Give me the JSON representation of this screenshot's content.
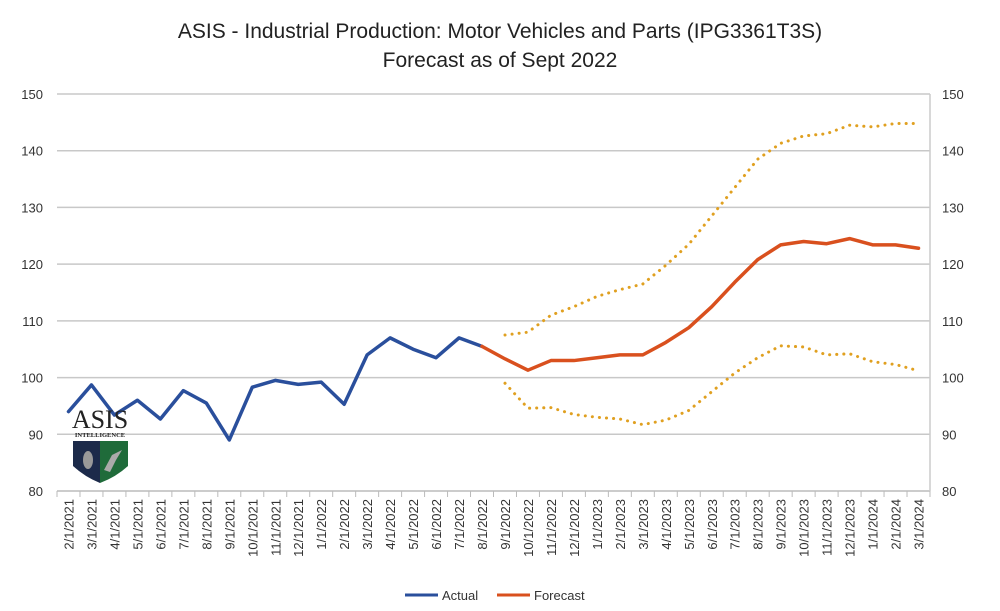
{
  "chart_data": {
    "type": "line",
    "title": "ASIS - Industrial Production: Motor Vehicles and Parts (IPG3361T3S)",
    "subtitle": "Forecast as of Sept 2022",
    "categories": [
      "2/1/2021",
      "3/1/2021",
      "4/1/2021",
      "5/1/2021",
      "6/1/2021",
      "7/1/2021",
      "8/1/2021",
      "9/1/2021",
      "10/1/2021",
      "11/1/2021",
      "12/1/2021",
      "1/1/2022",
      "2/1/2022",
      "3/1/2022",
      "4/1/2022",
      "5/1/2022",
      "6/1/2022",
      "7/1/2022",
      "8/1/2022",
      "9/1/2022",
      "10/1/2022",
      "11/1/2022",
      "12/1/2022",
      "1/1/2023",
      "2/1/2023",
      "3/1/2023",
      "4/1/2023",
      "5/1/2023",
      "6/1/2023",
      "7/1/2023",
      "8/1/2023",
      "9/1/2023",
      "10/1/2023",
      "11/1/2023",
      "12/1/2023",
      "1/1/2024",
      "2/1/2024",
      "3/1/2024"
    ],
    "ylim": [
      80,
      150
    ],
    "yticks": [
      80,
      90,
      100,
      110,
      120,
      130,
      140,
      150
    ],
    "grid": true,
    "legend": "bottom",
    "series": [
      {
        "name": "Actual",
        "color": "#2a4f9c",
        "style": "solid",
        "values": [
          94,
          98.7,
          93.4,
          96,
          92.7,
          97.7,
          95.5,
          89,
          98.3,
          99.5,
          98.8,
          99.2,
          95.3,
          104,
          107,
          105,
          103.5,
          107,
          105.5,
          null,
          null,
          null,
          null,
          null,
          null,
          null,
          null,
          null,
          null,
          null,
          null,
          null,
          null,
          null,
          null,
          null,
          null,
          null
        ]
      },
      {
        "name": "Forecast",
        "color": "#d9501e",
        "style": "solid",
        "values": [
          null,
          null,
          null,
          null,
          null,
          null,
          null,
          null,
          null,
          null,
          null,
          null,
          null,
          null,
          null,
          null,
          null,
          null,
          105.5,
          103.3,
          101.3,
          103,
          103,
          103.5,
          104,
          104,
          106.2,
          108.8,
          112.5,
          116.8,
          120.8,
          123.4,
          124,
          123.6,
          124.5,
          123.4,
          123.4,
          122.8
        ]
      },
      {
        "color": "#e0a020",
        "style": "dotted",
        "values": [
          null,
          null,
          null,
          null,
          null,
          null,
          null,
          null,
          null,
          null,
          null,
          null,
          null,
          null,
          null,
          null,
          null,
          null,
          null,
          107.5,
          108,
          111,
          112.5,
          114.3,
          115.5,
          116.5,
          119.8,
          123.5,
          128.5,
          133.5,
          138.5,
          141.3,
          142.6,
          143,
          144.5,
          144.2,
          144.8,
          144.8
        ]
      },
      {
        "color": "#e0a020",
        "style": "dotted",
        "values": [
          null,
          null,
          null,
          null,
          null,
          null,
          null,
          null,
          null,
          null,
          null,
          null,
          null,
          null,
          null,
          null,
          null,
          null,
          null,
          99,
          94.6,
          94.7,
          93.5,
          93,
          92.7,
          91.7,
          92.5,
          94.2,
          97.5,
          100.8,
          103.5,
          105.6,
          105.4,
          104,
          104.2,
          102.8,
          102.3,
          101.2
        ]
      }
    ]
  },
  "logo": {
    "text": "ASIS",
    "subtext": "INTELLIGENCE",
    "colors": [
      "#1c2a4a",
      "#1f6b3a"
    ]
  }
}
